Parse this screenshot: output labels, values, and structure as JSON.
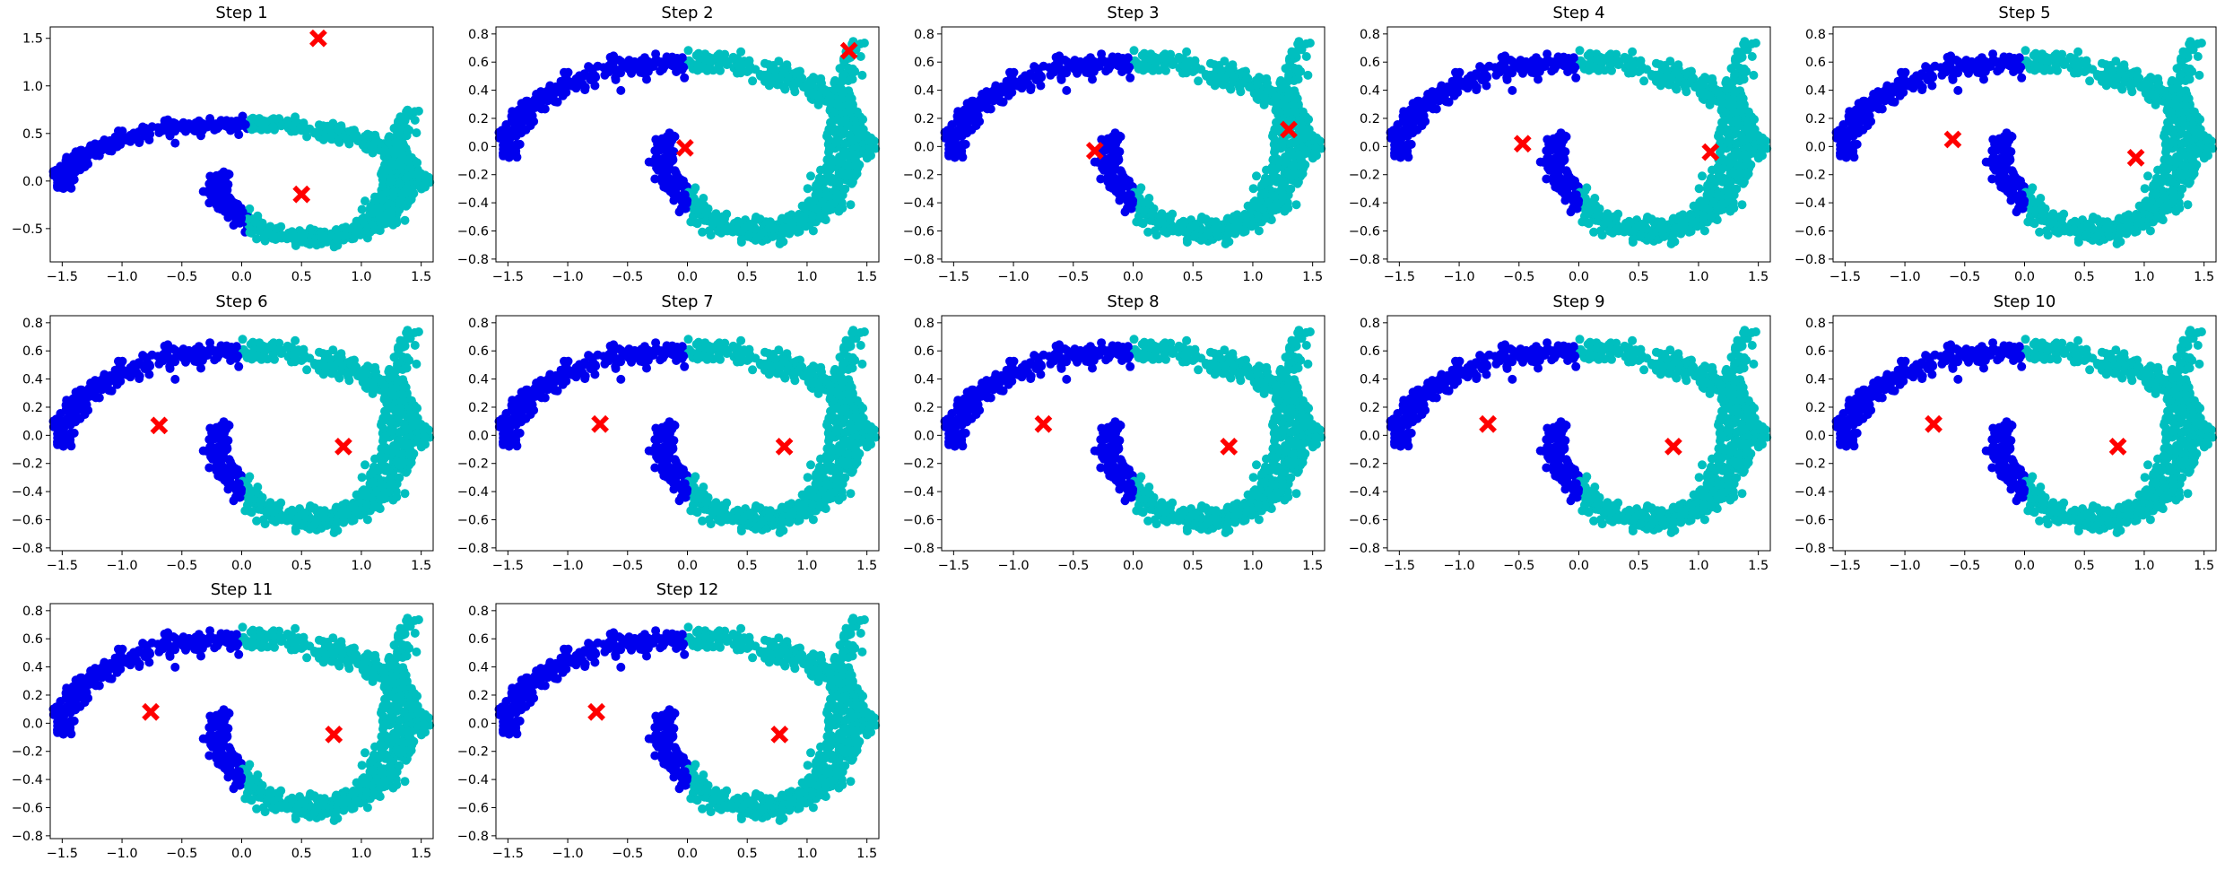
{
  "colors": {
    "cluster_a": "#0000ee",
    "cluster_b": "#00bfbf",
    "centroid": "#ff0000",
    "axes": "#000000"
  },
  "chart_data": [
    {
      "type": "scatter",
      "title": "Step 1",
      "centroids": [
        [
          0.64,
          1.5
        ],
        [
          0.5,
          -0.14
        ]
      ],
      "split_x": 0.05,
      "xlim": [
        -1.6,
        1.6
      ],
      "ylim": [
        -0.85,
        1.62
      ],
      "xticks": [
        -1.5,
        -1.0,
        -0.5,
        0.0,
        0.5,
        1.0,
        1.5
      ],
      "yticks": [
        -0.5,
        0.0,
        0.5,
        1.0,
        1.5
      ]
    },
    {
      "type": "scatter",
      "title": "Step 2",
      "centroids": [
        [
          -0.02,
          -0.01
        ],
        [
          1.35,
          0.68
        ]
      ],
      "split_x": 0.0,
      "xlim": [
        -1.6,
        1.6
      ],
      "ylim": [
        -0.82,
        0.85
      ],
      "xticks": [
        -1.5,
        -1.0,
        -0.5,
        0.0,
        0.5,
        1.0,
        1.5
      ],
      "yticks": [
        -0.8,
        -0.6,
        -0.4,
        -0.2,
        0.0,
        0.2,
        0.4,
        0.6,
        0.8
      ]
    },
    {
      "type": "scatter",
      "title": "Step 3",
      "centroids": [
        [
          -0.32,
          -0.03
        ],
        [
          1.3,
          0.12
        ]
      ],
      "split_x": 0.0,
      "xlim": [
        -1.6,
        1.6
      ],
      "ylim": [
        -0.82,
        0.85
      ],
      "xticks": [
        -1.5,
        -1.0,
        -0.5,
        0.0,
        0.5,
        1.0,
        1.5
      ],
      "yticks": [
        -0.8,
        -0.6,
        -0.4,
        -0.2,
        0.0,
        0.2,
        0.4,
        0.6,
        0.8
      ]
    },
    {
      "type": "scatter",
      "title": "Step 4",
      "centroids": [
        [
          -0.47,
          0.02
        ],
        [
          1.1,
          -0.04
        ]
      ],
      "split_x": 0.0,
      "xlim": [
        -1.6,
        1.6
      ],
      "ylim": [
        -0.82,
        0.85
      ],
      "xticks": [
        -1.5,
        -1.0,
        -0.5,
        0.0,
        0.5,
        1.0,
        1.5
      ],
      "yticks": [
        -0.8,
        -0.6,
        -0.4,
        -0.2,
        0.0,
        0.2,
        0.4,
        0.6,
        0.8
      ]
    },
    {
      "type": "scatter",
      "title": "Step 5",
      "centroids": [
        [
          -0.6,
          0.05
        ],
        [
          0.93,
          -0.08
        ]
      ],
      "split_x": 0.0,
      "xlim": [
        -1.6,
        1.6
      ],
      "ylim": [
        -0.82,
        0.85
      ],
      "xticks": [
        -1.5,
        -1.0,
        -0.5,
        0.0,
        0.5,
        1.0,
        1.5
      ],
      "yticks": [
        -0.8,
        -0.6,
        -0.4,
        -0.2,
        0.0,
        0.2,
        0.4,
        0.6,
        0.8
      ]
    },
    {
      "type": "scatter",
      "title": "Step 6",
      "centroids": [
        [
          -0.69,
          0.07
        ],
        [
          0.85,
          -0.08
        ]
      ],
      "split_x": 0.0,
      "xlim": [
        -1.6,
        1.6
      ],
      "ylim": [
        -0.82,
        0.85
      ],
      "xticks": [
        -1.5,
        -1.0,
        -0.5,
        0.0,
        0.5,
        1.0,
        1.5
      ],
      "yticks": [
        -0.8,
        -0.6,
        -0.4,
        -0.2,
        0.0,
        0.2,
        0.4,
        0.6,
        0.8
      ]
    },
    {
      "type": "scatter",
      "title": "Step 7",
      "centroids": [
        [
          -0.73,
          0.08
        ],
        [
          0.81,
          -0.08
        ]
      ],
      "split_x": 0.0,
      "xlim": [
        -1.6,
        1.6
      ],
      "ylim": [
        -0.82,
        0.85
      ],
      "xticks": [
        -1.5,
        -1.0,
        -0.5,
        0.0,
        0.5,
        1.0,
        1.5
      ],
      "yticks": [
        -0.8,
        -0.6,
        -0.4,
        -0.2,
        0.0,
        0.2,
        0.4,
        0.6,
        0.8
      ]
    },
    {
      "type": "scatter",
      "title": "Step 8",
      "centroids": [
        [
          -0.75,
          0.08
        ],
        [
          0.8,
          -0.08
        ]
      ],
      "split_x": 0.0,
      "xlim": [
        -1.6,
        1.6
      ],
      "ylim": [
        -0.82,
        0.85
      ],
      "xticks": [
        -1.5,
        -1.0,
        -0.5,
        0.0,
        0.5,
        1.0,
        1.5
      ],
      "yticks": [
        -0.8,
        -0.6,
        -0.4,
        -0.2,
        0.0,
        0.2,
        0.4,
        0.6,
        0.8
      ]
    },
    {
      "type": "scatter",
      "title": "Step 9",
      "centroids": [
        [
          -0.76,
          0.08
        ],
        [
          0.79,
          -0.08
        ]
      ],
      "split_x": 0.0,
      "xlim": [
        -1.6,
        1.6
      ],
      "ylim": [
        -0.82,
        0.85
      ],
      "xticks": [
        -1.5,
        -1.0,
        -0.5,
        0.0,
        0.5,
        1.0,
        1.5
      ],
      "yticks": [
        -0.8,
        -0.6,
        -0.4,
        -0.2,
        0.0,
        0.2,
        0.4,
        0.6,
        0.8
      ]
    },
    {
      "type": "scatter",
      "title": "Step 10",
      "centroids": [
        [
          -0.76,
          0.08
        ],
        [
          0.78,
          -0.08
        ]
      ],
      "split_x": 0.0,
      "xlim": [
        -1.6,
        1.6
      ],
      "ylim": [
        -0.82,
        0.85
      ],
      "xticks": [
        -1.5,
        -1.0,
        -0.5,
        0.0,
        0.5,
        1.0,
        1.5
      ],
      "yticks": [
        -0.8,
        -0.6,
        -0.4,
        -0.2,
        0.0,
        0.2,
        0.4,
        0.6,
        0.8
      ]
    },
    {
      "type": "scatter",
      "title": "Step 11",
      "centroids": [
        [
          -0.76,
          0.08
        ],
        [
          0.77,
          -0.08
        ]
      ],
      "split_x": 0.0,
      "xlim": [
        -1.6,
        1.6
      ],
      "ylim": [
        -0.82,
        0.85
      ],
      "xticks": [
        -1.5,
        -1.0,
        -0.5,
        0.0,
        0.5,
        1.0,
        1.5
      ],
      "yticks": [
        -0.8,
        -0.6,
        -0.4,
        -0.2,
        0.0,
        0.2,
        0.4,
        0.6,
        0.8
      ]
    },
    {
      "type": "scatter",
      "title": "Step 12",
      "centroids": [
        [
          -0.76,
          0.08
        ],
        [
          0.77,
          -0.08
        ]
      ],
      "split_x": 0.0,
      "xlim": [
        -1.6,
        1.6
      ],
      "ylim": [
        -0.82,
        0.85
      ],
      "xticks": [
        -1.5,
        -1.0,
        -0.5,
        0.0,
        0.5,
        1.0,
        1.5
      ],
      "yticks": [
        -0.8,
        -0.6,
        -0.4,
        -0.2,
        0.0,
        0.2,
        0.4,
        0.6,
        0.8
      ]
    }
  ]
}
